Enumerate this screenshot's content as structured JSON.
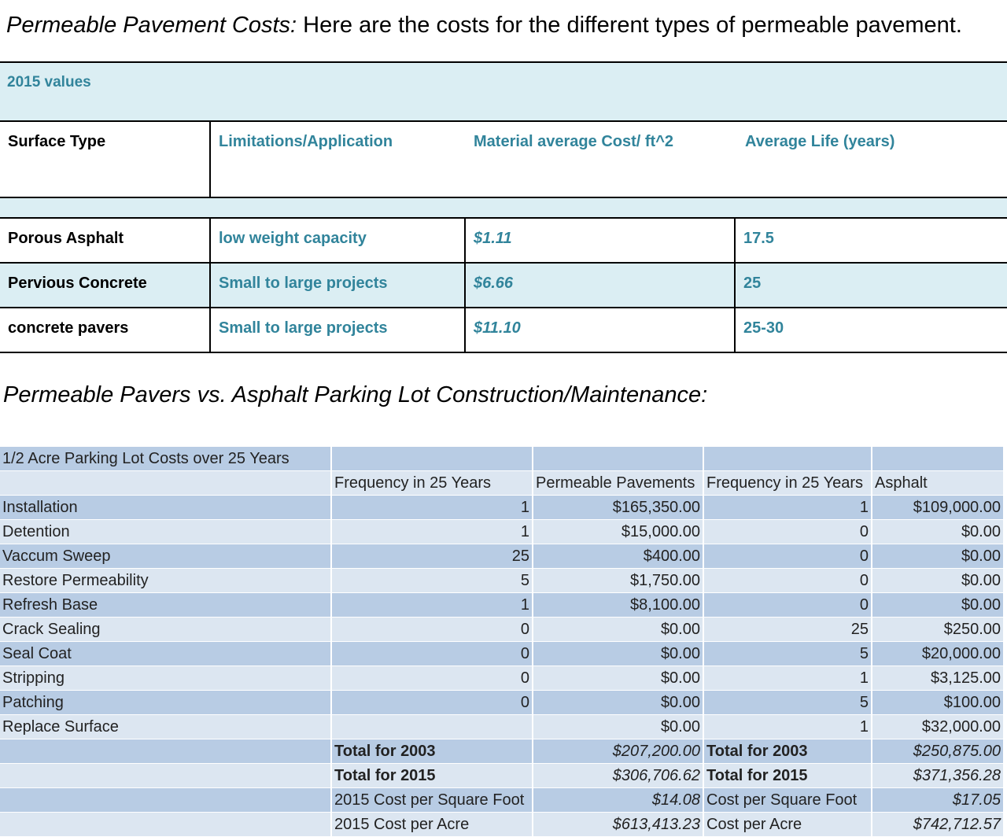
{
  "heading": {
    "label": "Permeable Pavement Costs:",
    "text": " Here are the costs for the different types of permeable pavement."
  },
  "table1": {
    "band_label": "2015 values",
    "headers": [
      "Surface Type",
      "Limitations/Application",
      "Material average Cost/ ft^2",
      "Average Life (years)"
    ],
    "rows": [
      [
        "Porous Asphalt",
        "low weight capacity",
        "$1.11",
        "17.5"
      ],
      [
        "Pervious Concrete",
        "Small to large projects",
        "$6.66",
        "25"
      ],
      [
        "concrete pavers",
        "Small to large projects",
        "$11.10",
        "25-30"
      ]
    ]
  },
  "heading2": "Permeable Pavers vs. Asphalt Parking Lot Construction/Maintenance:",
  "table2": {
    "title": "1/2 Acre Parking Lot Costs over 25 Years",
    "headers": [
      "",
      "Frequency in 25 Years",
      "Permeable Pavements",
      "Frequency in 25 Years",
      "Asphalt"
    ],
    "rows": [
      [
        "Installation",
        "1",
        "$165,350.00",
        "1",
        "$109,000.00"
      ],
      [
        "Detention",
        "1",
        "$15,000.00",
        "0",
        "$0.00"
      ],
      [
        "Vaccum Sweep",
        "25",
        "$400.00",
        "0",
        "$0.00"
      ],
      [
        "Restore Permeability",
        "5",
        "$1,750.00",
        "0",
        "$0.00"
      ],
      [
        "Refresh Base",
        "1",
        "$8,100.00",
        "0",
        "$0.00"
      ],
      [
        "Crack Sealing",
        "0",
        "$0.00",
        "25",
        "$250.00"
      ],
      [
        "Seal Coat",
        "0",
        "$0.00",
        "5",
        "$20,000.00"
      ],
      [
        "Stripping",
        "0",
        "$0.00",
        "1",
        "$3,125.00"
      ],
      [
        "Patching",
        "0",
        "$0.00",
        "5",
        "$100.00"
      ],
      [
        "Replace Surface",
        "",
        "$0.00",
        "1",
        "$32,000.00"
      ]
    ],
    "totals": [
      [
        "Total for 2003",
        "$207,200.00",
        "Total for 2003",
        "$250,875.00"
      ],
      [
        "Total for 2015",
        "$306,706.62",
        "Total for 2015",
        "$371,356.28"
      ],
      [
        "2015 Cost per Square Foot",
        "$14.08",
        "Cost per Square Foot",
        "$17.05"
      ],
      [
        "2015 Cost per Acre",
        "$613,413.23",
        "Cost per Acre",
        "$742,712.57"
      ]
    ]
  }
}
